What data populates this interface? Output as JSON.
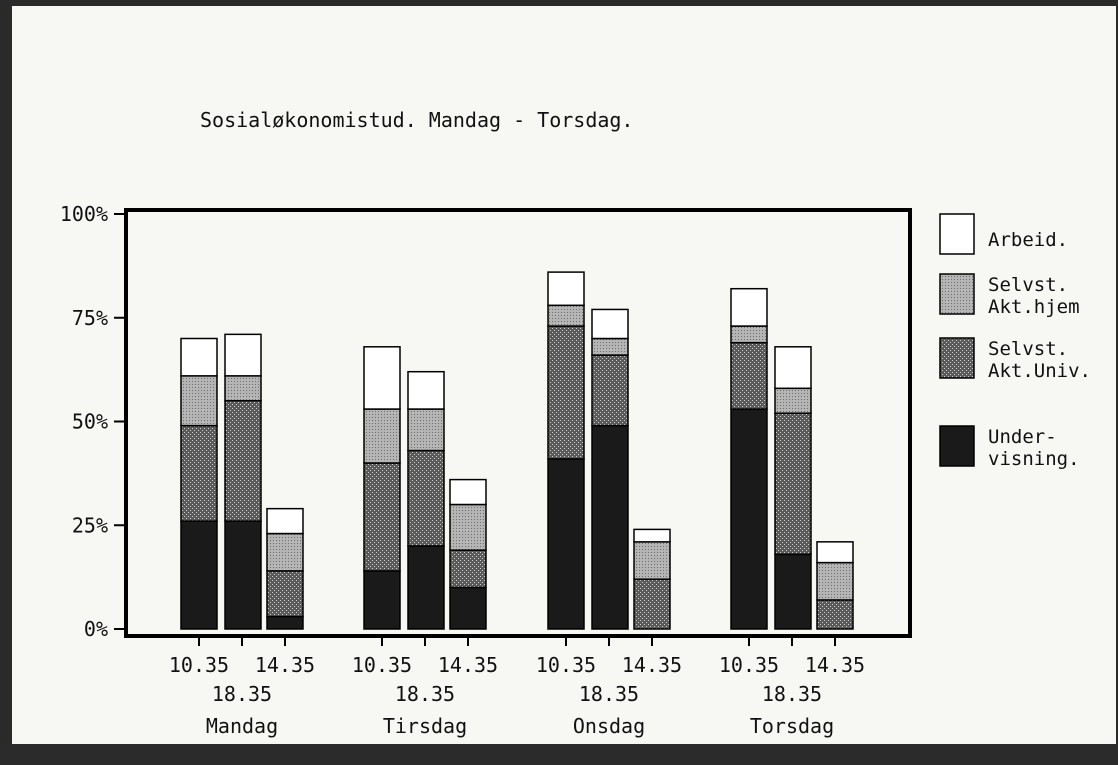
{
  "chart_data": {
    "type": "bar",
    "stacked": true,
    "title": "Sosialøkonomistud. Mandag - Torsdag.",
    "y_ticks": [
      "100%",
      "75%",
      "50%",
      "25%",
      "0%"
    ],
    "ylim": [
      0,
      100
    ],
    "legend_position": "right",
    "groups": [
      {
        "day": "Mandag",
        "times": [
          "10.35",
          "14.35",
          "18.35"
        ]
      },
      {
        "day": "Tirsdag",
        "times": [
          "10.35",
          "14.35",
          "18.35"
        ]
      },
      {
        "day": "Onsdag",
        "times": [
          "10.35",
          "14.35",
          "18.35"
        ]
      },
      {
        "day": "Torsdag",
        "times": [
          "10.35",
          "14.35",
          "18.35"
        ]
      }
    ],
    "series": [
      {
        "name": "Under-\nvisning.",
        "key": "undervisning",
        "color": "#1a1a1a",
        "values": [
          26,
          26,
          3,
          14,
          20,
          10,
          41,
          49,
          0,
          53,
          18,
          0
        ]
      },
      {
        "name": "Selvst.\nAkt.Univ.",
        "key": "selvst_akt_univ",
        "color": "#4d4d4d",
        "values": [
          23,
          29,
          11,
          26,
          23,
          9,
          32,
          17,
          12,
          16,
          34,
          7
        ]
      },
      {
        "name": "Selvst.\nAkt.hjem",
        "key": "selvst_akt_hjem",
        "color": "#9a9a9a",
        "values": [
          12,
          6,
          9,
          13,
          10,
          11,
          5,
          4,
          9,
          4,
          6,
          9
        ]
      },
      {
        "name": "Arbeid.",
        "key": "arbeid",
        "color": "#ffffff",
        "values": [
          9,
          10,
          6,
          15,
          9,
          6,
          8,
          7,
          3,
          9,
          10,
          5
        ]
      }
    ]
  }
}
